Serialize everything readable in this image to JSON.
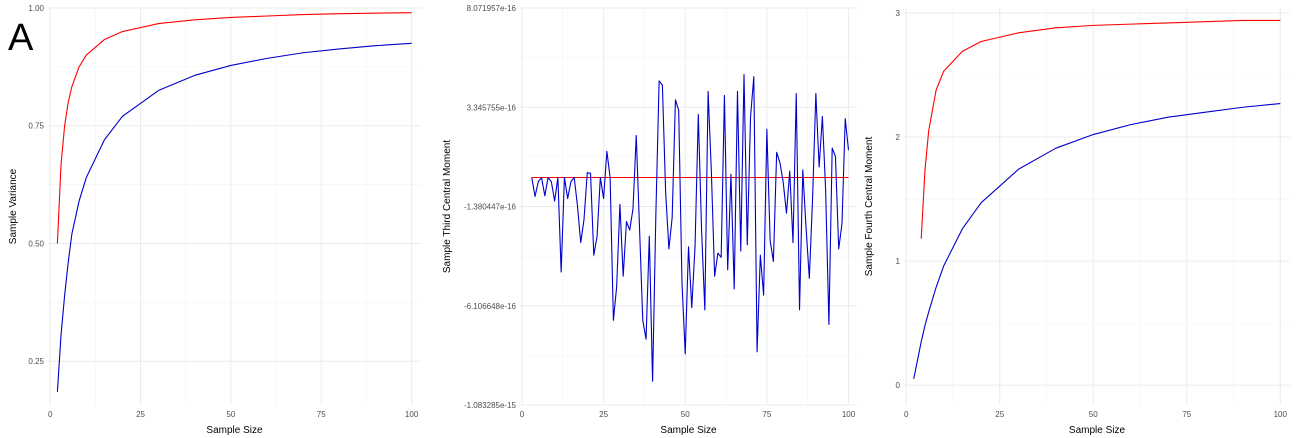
{
  "panel_tag": "A",
  "colors": {
    "red": "#ff0000",
    "blue": "#0000cc",
    "grid": "#ebebeb"
  },
  "chart_data": [
    {
      "type": "line",
      "xlabel": "Sample Size",
      "ylabel": "Sample Variance",
      "xlim": [
        -0.6,
        102.6
      ],
      "ylim": [
        0.157,
        1.0
      ],
      "x_ticks": [
        0,
        25,
        50,
        75,
        100
      ],
      "y_ticks": [
        0.25,
        0.5,
        0.75,
        1.0
      ],
      "x_tick_labels": [
        "0",
        "25",
        "50",
        "75",
        "100"
      ],
      "y_tick_labels": [
        "0.25",
        "0.50",
        "0.75",
        "1.00"
      ],
      "grid": true,
      "series": [
        {
          "color": "#ff0000",
          "x": [
            2,
            3,
            4,
            5,
            6,
            8,
            10,
            15,
            20,
            30,
            40,
            50,
            60,
            70,
            80,
            90,
            100
          ],
          "values": [
            0.5,
            0.667,
            0.75,
            0.8,
            0.833,
            0.875,
            0.9,
            0.933,
            0.95,
            0.967,
            0.975,
            0.98,
            0.983,
            0.986,
            0.988,
            0.989,
            0.99
          ]
        },
        {
          "color": "#0000cc",
          "x": [
            2,
            3,
            4,
            5,
            6,
            8,
            10,
            15,
            20,
            30,
            40,
            50,
            60,
            70,
            80,
            90,
            100
          ],
          "values": [
            0.185,
            0.305,
            0.39,
            0.46,
            0.52,
            0.59,
            0.64,
            0.72,
            0.77,
            0.825,
            0.857,
            0.878,
            0.893,
            0.905,
            0.913,
            0.92,
            0.925
          ]
        }
      ]
    },
    {
      "type": "line",
      "xlabel": "Sample Size",
      "ylabel": "Sample Third Central Moment",
      "xlim": [
        -0.6,
        102.6
      ],
      "ylim": [
        -1.083285e-15,
        8.071957e-16
      ],
      "x_ticks": [
        0,
        25,
        50,
        75,
        100
      ],
      "y_ticks": [
        -1.083285e-15,
        -6.106648e-16,
        -1.380447e-16,
        3.345755e-16,
        8.071957e-16
      ],
      "x_tick_labels": [
        "0",
        "25",
        "50",
        "75",
        "100"
      ],
      "y_tick_labels": [
        "-1.083285e-15",
        "-6.106648e-16",
        "-1.380447e-16",
        "3.345755e-16",
        "8.071957e-16"
      ],
      "grid": true,
      "series": [
        {
          "color": "#ff0000",
          "x": [
            3,
            100
          ],
          "values": [
            0,
            0
          ]
        },
        {
          "color": "#0000cc",
          "x": [
            3,
            4,
            5,
            6,
            7,
            8,
            9,
            10,
            11,
            12,
            13,
            14,
            15,
            16,
            17,
            18,
            19,
            20,
            21,
            22,
            23,
            24,
            25,
            26,
            27,
            28,
            29,
            30,
            31,
            32,
            33,
            34,
            35,
            36,
            37,
            38,
            39,
            40,
            41,
            42,
            43,
            44,
            45,
            46,
            47,
            48,
            49,
            50,
            51,
            52,
            53,
            54,
            55,
            56,
            57,
            58,
            59,
            60,
            61,
            62,
            63,
            64,
            65,
            66,
            67,
            68,
            69,
            70,
            71,
            72,
            73,
            74,
            75,
            76,
            77,
            78,
            79,
            80,
            81,
            82,
            83,
            84,
            85,
            86,
            87,
            88,
            89,
            90,
            91,
            92,
            93,
            94,
            95,
            96,
            97,
            98,
            99,
            100
          ],
          "values": [
            0,
            -9e-17,
            -2e-17,
            0,
            -8.7e-17,
            0,
            -2e-17,
            -1.12e-16,
            0,
            -4.5e-16,
            0,
            -1e-16,
            -2e-17,
            0,
            -1.35e-16,
            -3.1e-16,
            -2e-16,
            2.3e-17,
            2e-17,
            -3.7e-16,
            -2.8e-16,
            0,
            -1e-16,
            1.25e-16,
            0,
            -6.8e-16,
            -5.2e-16,
            -1.28e-16,
            -4.7e-16,
            -2.1e-16,
            -2.5e-16,
            -1.5e-16,
            2e-16,
            -2.4e-16,
            -6.8e-16,
            -7.7e-16,
            -2.8e-16,
            -9.7e-16,
            -1.8e-16,
            4.6e-16,
            4.4e-16,
            -7e-17,
            -3.4e-16,
            -1.9e-16,
            3.7e-16,
            3.2e-16,
            -5e-16,
            -8.4e-16,
            -3.3e-16,
            -6.2e-16,
            -3.3e-16,
            3e-16,
            -2.5e-16,
            -6.3e-16,
            4.1e-16,
            2.8e-17,
            -4.7e-16,
            -3.6e-16,
            -3.8e-16,
            3.9e-16,
            -4.4e-16,
            1.5e-17,
            -5.3e-16,
            4.1e-16,
            -3.5e-16,
            4.9e-16,
            -3.2e-16,
            2.9e-16,
            4.8e-16,
            -8.3e-16,
            -3.7e-16,
            -5.6e-16,
            2.3e-16,
            -3e-16,
            -4e-16,
            1.2e-16,
            7e-17,
            -2.2e-17,
            -1.7e-16,
            3e-17,
            -3.1e-16,
            4e-16,
            -6.3e-16,
            3.6e-17,
            -2.4e-16,
            -4.8e-16,
            -1e-16,
            4e-16,
            5e-17,
            2.9e-16,
            -6.1e-17,
            -7e-16,
            1.4e-16,
            1e-16,
            -3.4e-16,
            -2.2e-16,
            2.8e-16,
            1.3e-16
          ]
        }
      ]
    },
    {
      "type": "line",
      "xlabel": "Sample Size",
      "ylabel": "Sample Fourth Central Moment",
      "xlim": [
        -0.6,
        102.6
      ],
      "ylim": [
        -0.16,
        3.04
      ],
      "x_ticks": [
        0,
        25,
        50,
        75,
        100
      ],
      "y_ticks": [
        0,
        1,
        2,
        3
      ],
      "x_tick_labels": [
        "0",
        "25",
        "50",
        "75",
        "100"
      ],
      "y_tick_labels": [
        "0",
        "1",
        "2",
        "3"
      ],
      "grid": true,
      "series": [
        {
          "color": "#ff0000",
          "x": [
            4,
            5,
            6,
            8,
            10,
            15,
            20,
            30,
            40,
            50,
            60,
            70,
            80,
            90,
            100
          ],
          "values": [
            1.18,
            1.73,
            2.05,
            2.38,
            2.53,
            2.69,
            2.77,
            2.84,
            2.88,
            2.9,
            2.91,
            2.92,
            2.93,
            2.94,
            2.94
          ]
        },
        {
          "color": "#0000cc",
          "x": [
            2,
            3,
            4,
            5,
            6,
            8,
            10,
            15,
            20,
            30,
            40,
            50,
            60,
            70,
            80,
            90,
            100
          ],
          "values": [
            0.05,
            0.2,
            0.35,
            0.48,
            0.59,
            0.79,
            0.96,
            1.26,
            1.47,
            1.74,
            1.91,
            2.02,
            2.1,
            2.16,
            2.2,
            2.24,
            2.27
          ]
        }
      ]
    }
  ]
}
